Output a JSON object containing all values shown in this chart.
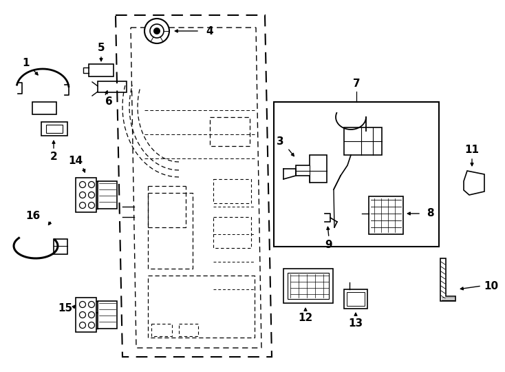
{
  "bg_color": "#ffffff",
  "line_color": "#000000",
  "fig_width": 7.34,
  "fig_height": 5.4,
  "dpi": 100
}
